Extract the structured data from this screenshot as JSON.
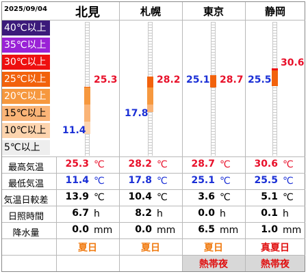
{
  "date": "2025/09/04",
  "stations": [
    {
      "name": "北見",
      "max": "25.3",
      "min": "11.4",
      "diff": "13.9",
      "sun": "6.7",
      "rain": "0.0",
      "tag1": "夏日",
      "tag2": ""
    },
    {
      "name": "札幌",
      "max": "28.2",
      "min": "17.8",
      "diff": "10.4",
      "sun": "8.2",
      "rain": "0.0",
      "tag1": "夏日",
      "tag2": ""
    },
    {
      "name": "東京",
      "max": "28.7",
      "min": "25.1",
      "diff": "3.6",
      "sun": "0.0",
      "rain": "6.5",
      "tag1": "夏日",
      "tag2": "熱帯夜"
    },
    {
      "name": "静岡",
      "max": "30.6",
      "min": "25.5",
      "diff": "5.1",
      "sun": "0.1",
      "rain": "1.0",
      "tag1": "真夏日",
      "tag2": "熱帯夜"
    }
  ],
  "legend": [
    {
      "label": "40℃以上",
      "color": "#3b1a7a",
      "text_color": "#ffffff"
    },
    {
      "label": "35℃以上",
      "color": "#9a22d6",
      "text_color": "#ffffff"
    },
    {
      "label": "30℃以上",
      "color": "#ee1010",
      "text_color": "#ffffff"
    },
    {
      "label": "25℃以上",
      "color": "#f2620c",
      "text_color": "#ffffff"
    },
    {
      "label": "20℃以上",
      "color": "#f6983e",
      "text_color": "#ffffff"
    },
    {
      "label": "15℃以上",
      "color": "#fab477",
      "text_color": "#000000"
    },
    {
      "label": "10℃以上",
      "color": "#fdd4ae",
      "text_color": "#000000"
    },
    {
      "label": "5℃以上",
      "color": "#eeeeee",
      "text_color": "#000000"
    }
  ],
  "rows": {
    "max_label": "最高気温",
    "min_label": "最低気温",
    "diff_label": "気温日較差",
    "sun_label": "日照時間",
    "rain_label": "降水量",
    "unit_temp": "℃",
    "unit_hour": "h",
    "unit_mm": "mm"
  },
  "colors": {
    "max_text": "#e8102a",
    "min_text": "#1a2fd6",
    "tag_orange": "#f07a10",
    "tag_red": "#e01010",
    "tag2_bg": "#d8d8d8"
  }
}
